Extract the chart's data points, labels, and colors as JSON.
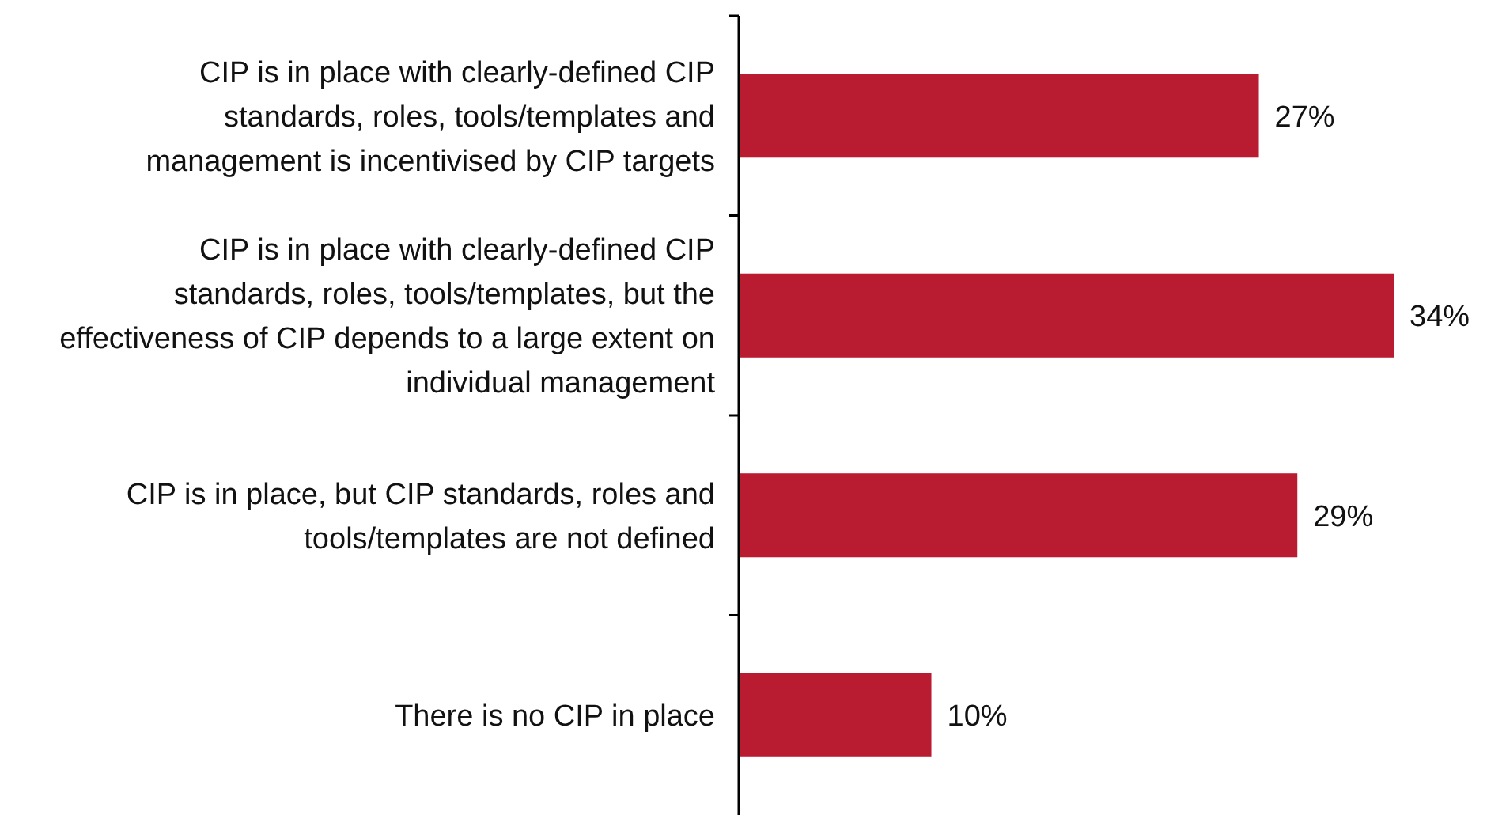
{
  "chart_data": {
    "type": "bar",
    "orientation": "horizontal",
    "categories": [
      "CIP is in place with clearly-defined CIP standards, roles, tools/templates and management is incentivised by CIP targets",
      "CIP is in place with clearly-defined CIP standards, roles, tools/templates, but the effectiveness of CIP depends to a large extent on individual management",
      "CIP is in place, but CIP standards, roles and tools/templates are not defined",
      "There is no CIP in place"
    ],
    "values": [
      27,
      34,
      29,
      10
    ],
    "value_labels": [
      "27%",
      "34%",
      "29%",
      "10%"
    ],
    "color": "#b91c30"
  }
}
